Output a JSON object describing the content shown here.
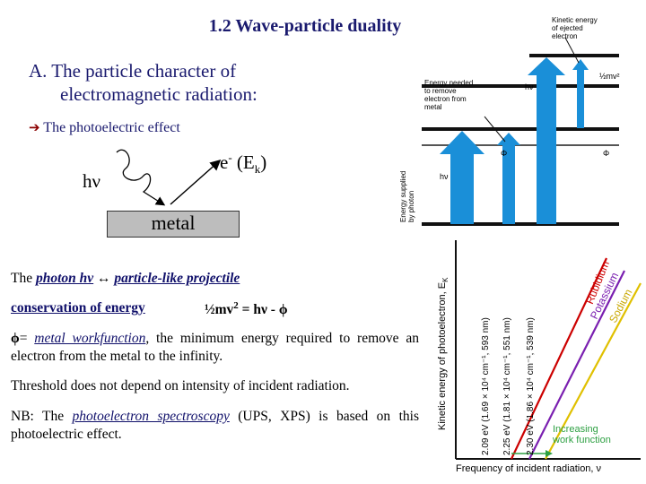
{
  "slide": {
    "title": "1.2 Wave-particle duality",
    "section_a_line1": "A.  The particle character of",
    "section_a_line2": "electromagnetic radiation:",
    "arrow_glyph": "➔",
    "pe_label": " The photoelectric effect",
    "hnu": "hν",
    "electron_e": "e",
    "electron_sup": "-",
    "electron_ek": " (E",
    "electron_sub": "k",
    "electron_close": ")",
    "metal": "metal",
    "photon_line_prefix": "The ",
    "photon_line_photon": "photon hν",
    "photon_line_arrow": " ↔ ",
    "photon_line_particle": "particle-like projectile",
    "conservation": "conservation of energy",
    "equation_left": "½mv",
    "equation_sup": "2",
    "equation_right": " = hν - ϕ",
    "phi_symbol": "ϕ",
    "phi_eq": "= ",
    "phi_term": "metal workfunction",
    "phi_rest": ", the minimum energy required to remove an electron from the metal to the infinity.",
    "threshold": "Threshold does not depend on intensity of incident radiation.",
    "nb_prefix": "NB: The ",
    "nb_term": "photoelectron spectroscopy",
    "nb_rest": " (UPS, XPS) is based on this photoelectric effect."
  },
  "energy_diagram": {
    "kinetic_label": [
      "Kinetic energy",
      "of ejected",
      "electron"
    ],
    "needed_label": [
      "Energy needed",
      "to remove",
      "electron from",
      "metal"
    ],
    "supplied_label": [
      "Energy supplied",
      "by photon"
    ],
    "hv_top": "hν",
    "half_mv": "½mv²",
    "phi_left": "Φ",
    "phi_right": "Φ",
    "hv_low": "hν"
  },
  "graph": {
    "y_label": "Kinetic energy of photoelectron, E",
    "y_label_sub": "K",
    "x_label": "Frequency of incident radiation, ν",
    "thresholds": [
      "2.09 eV (1.69 × 10⁴ cm⁻¹, 593 nm)",
      "2.25 eV (1.81 × 10⁴ cm⁻¹, 551 nm)",
      "2.30 eV (1.86 × 10⁴ cm⁻¹, 539 nm)"
    ],
    "metals": [
      "Rubidium",
      "Potassium",
      "Sodium"
    ],
    "increasing": [
      "Increasing",
      "work function"
    ],
    "colors": {
      "rubidium": "#cc0000",
      "potassium": "#7a1fb0",
      "sodium": "#e0c000",
      "arrows": "#1a8fd8",
      "increasing": "#2ea043"
    }
  }
}
